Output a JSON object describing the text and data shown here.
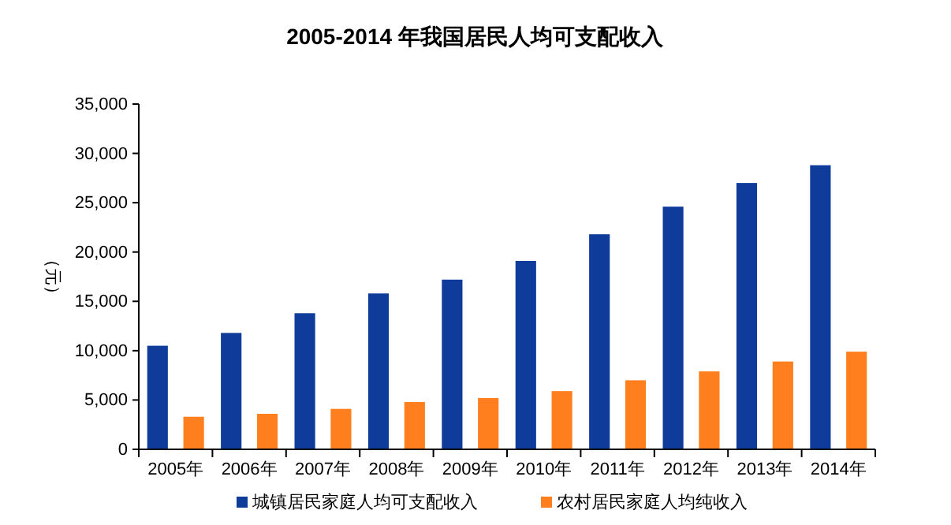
{
  "chart_data": {
    "type": "bar",
    "title": "2005-2014 年我国居民人均可支配收入",
    "ylabel": "（元）",
    "categories": [
      "2005年",
      "2006年",
      "2007年",
      "2008年",
      "2009年",
      "2010年",
      "2011年",
      "2012年",
      "2013年",
      "2014年"
    ],
    "series": [
      {
        "name": "城镇居民家庭人均可支配收入",
        "color": "#0f3c9b",
        "values": [
          10500,
          11800,
          13800,
          15800,
          17200,
          19100,
          21800,
          24600,
          27000,
          28800
        ]
      },
      {
        "name": "农村居民家庭人均纯收入",
        "color": "#ff7f1e",
        "values": [
          3300,
          3600,
          4100,
          4800,
          5200,
          5900,
          7000,
          7900,
          8900,
          9900
        ]
      }
    ],
    "ylim": [
      0,
      35000
    ],
    "yticks": [
      {
        "value": 0,
        "label": "0"
      },
      {
        "value": 5000,
        "label": "5,000"
      },
      {
        "value": 10000,
        "label": "10,000"
      },
      {
        "value": 15000,
        "label": "15,000"
      },
      {
        "value": 20000,
        "label": "20,000"
      },
      {
        "value": 25000,
        "label": "25,000"
      },
      {
        "value": 30000,
        "label": "30,000"
      },
      {
        "value": 35000,
        "label": "35,000"
      }
    ],
    "grid": false,
    "legend": "bottom"
  }
}
